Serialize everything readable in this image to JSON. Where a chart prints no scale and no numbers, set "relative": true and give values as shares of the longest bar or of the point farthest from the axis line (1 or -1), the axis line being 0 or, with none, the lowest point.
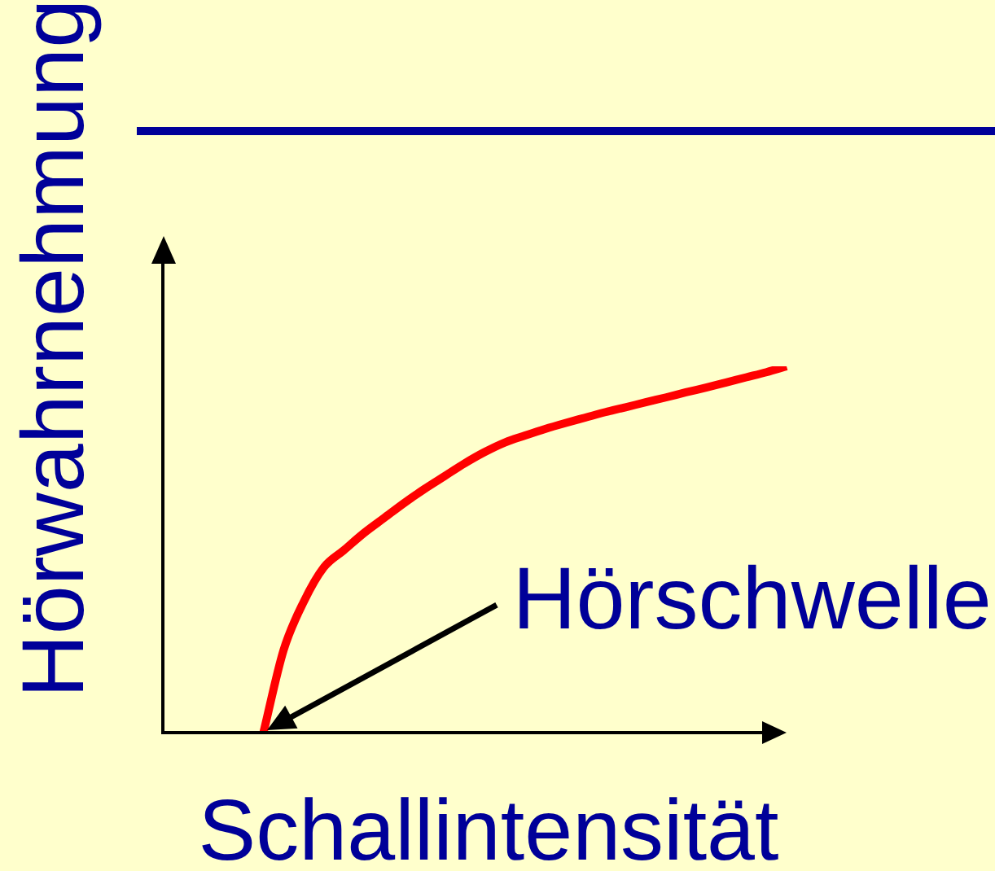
{
  "chart_data": {
    "type": "line",
    "xlabel": "Schallintensität",
    "ylabel": "Hörwahrnehmung",
    "relative": true,
    "categories": [
      null,
      null,
      null,
      null,
      null,
      null,
      null,
      null,
      null,
      null,
      null,
      null,
      null,
      null,
      null,
      null,
      null,
      null,
      null,
      null,
      null,
      null,
      null,
      null,
      null,
      null,
      null,
      null,
      null,
      null,
      null,
      null
    ],
    "series": [
      {
        "color": "#ff0000",
        "values": [
          null,
          null,
          null,
          null,
          null,
          0,
          0.225,
          0.357,
          0.451,
          0.498,
          0.545,
          0.586,
          0.627,
          0.665,
          0.7,
          0.735,
          0.766,
          0.792,
          0.811,
          0.829,
          0.845,
          0.86,
          0.875,
          0.888,
          0.902,
          0.915,
          0.929,
          0.942,
          0.956,
          0.97,
          0.984,
          1
        ]
      }
    ],
    "annotations": [
      "Hörschwelle"
    ]
  }
}
